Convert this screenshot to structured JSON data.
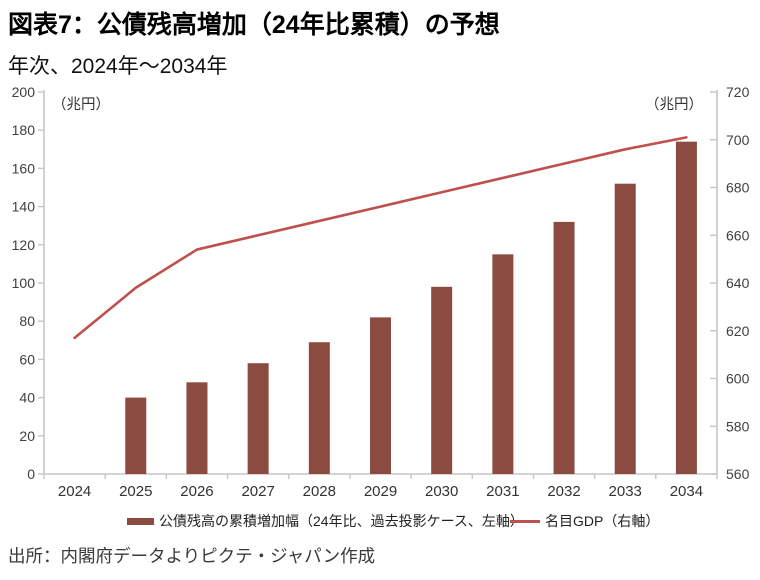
{
  "header": {
    "title": "図表7：公債残高増加（24年比累積）の予想",
    "subtitle": "年次、2024年～2034年"
  },
  "chart_data": {
    "type": "bar",
    "subtype": "combo-bar-line",
    "categories": [
      "2024",
      "2025",
      "2026",
      "2027",
      "2028",
      "2029",
      "2030",
      "2031",
      "2032",
      "2033",
      "2034"
    ],
    "series": [
      {
        "name": "公債残高の累積増加幅（24年比、過去投影ケース、左軸）",
        "type": "bar",
        "axis": "left",
        "color": "#8b4b40",
        "values": [
          0,
          40,
          48,
          58,
          69,
          82,
          98,
          115,
          132,
          152,
          174
        ]
      },
      {
        "name": "名目GDP（右軸）",
        "type": "line",
        "axis": "right",
        "color": "#c0504d",
        "values": [
          617,
          638,
          654,
          660,
          666,
          672,
          678,
          684,
          690,
          696,
          701
        ]
      }
    ],
    "left_axis": {
      "unit": "（兆円）",
      "min": 0,
      "max": 200,
      "step": 20
    },
    "right_axis": {
      "unit": "（兆円）",
      "min": 560,
      "max": 720,
      "step": 20
    },
    "grid": false,
    "legend_position": "bottom",
    "axis_color": "#c6c6c6",
    "tick_label_color": "#404040"
  },
  "legend": {
    "bar_label": "公債残高の累積増加幅（24年比、過去投影ケース、左軸）",
    "line_label": "名目GDP（右軸）"
  },
  "footer": {
    "source": "出所：内閣府データよりピクテ・ジャパン作成"
  }
}
